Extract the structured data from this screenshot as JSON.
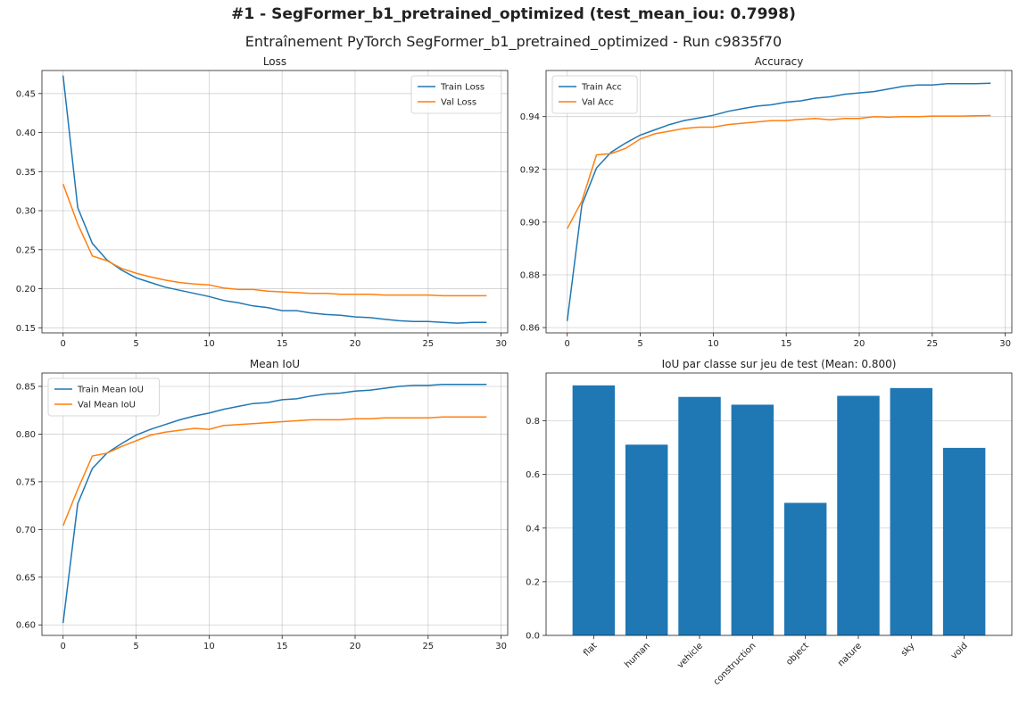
{
  "figure": {
    "title": "#1 - SegFormer_b1_pretrained_optimized (test_mean_iou: 0.7998)",
    "subtitle": "Entraînement PyTorch SegFormer_b1_pretrained_optimized - Run c9835f70"
  },
  "colors": {
    "series_1": "#1f77b4",
    "series_2": "#ff7f0e",
    "grid": "#b0b0b0"
  },
  "chart_data": [
    {
      "type": "line",
      "title": "Loss",
      "legend_position": "top-right",
      "grid": true,
      "xlim": [
        -1.45,
        30.45
      ],
      "ylim": [
        0.1435,
        0.4795
      ],
      "xticks": [
        0,
        5,
        10,
        15,
        20,
        25,
        30
      ],
      "xtick_labels": [
        "0",
        "5",
        "10",
        "15",
        "20",
        "25",
        "30"
      ],
      "yticks": [
        0.15,
        0.2,
        0.25,
        0.3,
        0.35,
        0.4,
        0.45
      ],
      "ytick_labels": [
        "0.15",
        "0.20",
        "0.25",
        "0.30",
        "0.35",
        "0.40",
        "0.45"
      ],
      "x": [
        0,
        1,
        2,
        3,
        4,
        5,
        6,
        7,
        8,
        9,
        10,
        11,
        12,
        13,
        14,
        15,
        16,
        17,
        18,
        19,
        20,
        21,
        22,
        23,
        24,
        25,
        26,
        27,
        28,
        29
      ],
      "series": [
        {
          "name": "Train Loss",
          "values": [
            0.473,
            0.304,
            0.258,
            0.237,
            0.224,
            0.214,
            0.208,
            0.202,
            0.198,
            0.194,
            0.19,
            0.185,
            0.182,
            0.178,
            0.176,
            0.172,
            0.172,
            0.169,
            0.167,
            0.166,
            0.164,
            0.163,
            0.161,
            0.159,
            0.158,
            0.158,
            0.157,
            0.156,
            0.157,
            0.157
          ]
        },
        {
          "name": "Val Loss",
          "values": [
            0.334,
            0.283,
            0.242,
            0.236,
            0.226,
            0.22,
            0.215,
            0.211,
            0.208,
            0.206,
            0.205,
            0.201,
            0.199,
            0.199,
            0.197,
            0.196,
            0.195,
            0.194,
            0.194,
            0.193,
            0.193,
            0.193,
            0.192,
            0.192,
            0.192,
            0.192,
            0.191,
            0.191,
            0.191,
            0.191
          ]
        }
      ]
    },
    {
      "type": "line",
      "title": "Accuracy",
      "legend_position": "top-left",
      "grid": true,
      "xlim": [
        -1.45,
        30.45
      ],
      "ylim": [
        0.858,
        0.9575
      ],
      "xticks": [
        0,
        5,
        10,
        15,
        20,
        25,
        30
      ],
      "xtick_labels": [
        "0",
        "5",
        "10",
        "15",
        "20",
        "25",
        "30"
      ],
      "yticks": [
        0.86,
        0.88,
        0.9,
        0.92,
        0.94
      ],
      "ytick_labels": [
        "0.86",
        "0.88",
        "0.90",
        "0.92",
        "0.94"
      ],
      "x": [
        0,
        1,
        2,
        3,
        4,
        5,
        6,
        7,
        8,
        9,
        10,
        11,
        12,
        13,
        14,
        15,
        16,
        17,
        18,
        19,
        20,
        21,
        22,
        23,
        24,
        25,
        26,
        27,
        28,
        29
      ],
      "series": [
        {
          "name": "Train Acc",
          "values": [
            0.8625,
            0.9065,
            0.9205,
            0.9265,
            0.93,
            0.933,
            0.935,
            0.937,
            0.9385,
            0.9395,
            0.9405,
            0.942,
            0.943,
            0.944,
            0.9445,
            0.9455,
            0.946,
            0.947,
            0.9475,
            0.9485,
            0.949,
            0.9495,
            0.9505,
            0.9515,
            0.952,
            0.952,
            0.9525,
            0.9525,
            0.9525,
            0.9527
          ]
        },
        {
          "name": "Val Acc",
          "values": [
            0.8975,
            0.908,
            0.9255,
            0.926,
            0.928,
            0.9315,
            0.9335,
            0.9345,
            0.9355,
            0.936,
            0.936,
            0.937,
            0.9375,
            0.938,
            0.9385,
            0.9385,
            0.939,
            0.9393,
            0.9388,
            0.9393,
            0.9393,
            0.94,
            0.9398,
            0.94,
            0.94,
            0.9402,
            0.9402,
            0.9402,
            0.9403,
            0.9404
          ]
        }
      ]
    },
    {
      "type": "line",
      "title": "Mean IoU",
      "legend_position": "top-left",
      "grid": true,
      "xlim": [
        -1.45,
        30.45
      ],
      "ylim": [
        0.589,
        0.864
      ],
      "xticks": [
        0,
        5,
        10,
        15,
        20,
        25,
        30
      ],
      "xtick_labels": [
        "0",
        "5",
        "10",
        "15",
        "20",
        "25",
        "30"
      ],
      "yticks": [
        0.6,
        0.65,
        0.7,
        0.75,
        0.8,
        0.85
      ],
      "ytick_labels": [
        "0.60",
        "0.65",
        "0.70",
        "0.75",
        "0.80",
        "0.85"
      ],
      "x": [
        0,
        1,
        2,
        3,
        4,
        5,
        6,
        7,
        8,
        9,
        10,
        11,
        12,
        13,
        14,
        15,
        16,
        17,
        18,
        19,
        20,
        21,
        22,
        23,
        24,
        25,
        26,
        27,
        28,
        29
      ],
      "series": [
        {
          "name": "Train Mean IoU",
          "values": [
            0.602,
            0.727,
            0.764,
            0.78,
            0.79,
            0.799,
            0.805,
            0.81,
            0.815,
            0.819,
            0.822,
            0.826,
            0.829,
            0.832,
            0.833,
            0.836,
            0.837,
            0.84,
            0.842,
            0.843,
            0.845,
            0.846,
            0.848,
            0.85,
            0.851,
            0.851,
            0.852,
            0.852,
            0.852,
            0.852
          ]
        },
        {
          "name": "Val Mean IoU",
          "values": [
            0.704,
            0.742,
            0.777,
            0.78,
            0.787,
            0.793,
            0.799,
            0.802,
            0.804,
            0.806,
            0.805,
            0.809,
            0.81,
            0.811,
            0.812,
            0.813,
            0.814,
            0.815,
            0.815,
            0.815,
            0.816,
            0.816,
            0.817,
            0.817,
            0.817,
            0.817,
            0.818,
            0.818,
            0.818,
            0.818
          ]
        }
      ]
    },
    {
      "type": "bar",
      "title": "IoU par classe sur jeu de test (Mean: 0.800)",
      "grid": true,
      "ylim": [
        0,
        0.978
      ],
      "yticks": [
        0,
        0.2,
        0.4,
        0.6,
        0.8
      ],
      "ytick_labels": [
        "0.0",
        "0.2",
        "0.4",
        "0.6",
        "0.8"
      ],
      "categories": [
        "flat",
        "human",
        "vehicle",
        "construction",
        "object",
        "nature",
        "sky",
        "void"
      ],
      "values": [
        0.932,
        0.711,
        0.889,
        0.86,
        0.494,
        0.893,
        0.922,
        0.699
      ]
    }
  ]
}
